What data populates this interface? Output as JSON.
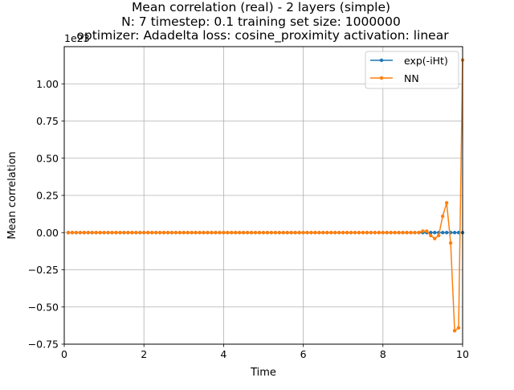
{
  "chart_data": {
    "type": "line",
    "title_lines": [
      "Mean correlation (real) - 2 layers (simple)",
      "N: 7 timestep: 0.1 training set size: 1000000",
      "optimizer: Adadelta loss: cosine_proximity activation: linear"
    ],
    "xlabel": "Time",
    "ylabel": "Mean correlation",
    "y_offset_text": "1e23",
    "xlim": [
      0,
      10
    ],
    "ylim": [
      -0.75,
      1.25
    ],
    "x_ticks": [
      0,
      2,
      4,
      6,
      8,
      10
    ],
    "x_tick_labels": [
      "0",
      "2",
      "4",
      "6",
      "8",
      "10"
    ],
    "y_ticks": [
      -0.75,
      -0.5,
      -0.25,
      0.0,
      0.25,
      0.5,
      0.75,
      1.0
    ],
    "y_tick_labels": [
      "−0.75",
      "−0.50",
      "−0.25",
      "0.00",
      "0.25",
      "0.50",
      "0.75",
      "1.00"
    ],
    "grid": true,
    "legend_position": "top-right",
    "x_start": 0.1,
    "x_step": 0.1,
    "series": [
      {
        "name": "exp(-iHt)",
        "color": "#1f77b4",
        "values": [
          0,
          0,
          0,
          0,
          0,
          0,
          0,
          0,
          0,
          0,
          0,
          0,
          0,
          0,
          0,
          0,
          0,
          0,
          0,
          0,
          0,
          0,
          0,
          0,
          0,
          0,
          0,
          0,
          0,
          0,
          0,
          0,
          0,
          0,
          0,
          0,
          0,
          0,
          0,
          0,
          0,
          0,
          0,
          0,
          0,
          0,
          0,
          0,
          0,
          0,
          0,
          0,
          0,
          0,
          0,
          0,
          0,
          0,
          0,
          0,
          0,
          0,
          0,
          0,
          0,
          0,
          0,
          0,
          0,
          0,
          0,
          0,
          0,
          0,
          0,
          0,
          0,
          0,
          0,
          0,
          0,
          0,
          0,
          0,
          0,
          0,
          0,
          0,
          0,
          0,
          0,
          0,
          0,
          0,
          0,
          0,
          0,
          0,
          0,
          0
        ]
      },
      {
        "name": "NN",
        "color": "#ff7f0e",
        "values": [
          0,
          0,
          0,
          0,
          0,
          0,
          0,
          0,
          0,
          0,
          0,
          0,
          0,
          0,
          0,
          0,
          0,
          0,
          0,
          0,
          0,
          0,
          0,
          0,
          0,
          0,
          0,
          0,
          0,
          0,
          0,
          0,
          0,
          0,
          0,
          0,
          0,
          0,
          0,
          0,
          0,
          0,
          0,
          0,
          0,
          0,
          0,
          0,
          0,
          0,
          0,
          0,
          0,
          0,
          0,
          0,
          0,
          0,
          0,
          0,
          0,
          0,
          0,
          0,
          0,
          0,
          0,
          0,
          0,
          0,
          0,
          0,
          0,
          0,
          0,
          0,
          0,
          0,
          0,
          0,
          0,
          0,
          0,
          0,
          0,
          0,
          0,
          0,
          0,
          0.01,
          0.01,
          -0.02,
          -0.04,
          -0.02,
          0.11,
          0.2,
          -0.07,
          -0.66,
          -0.64,
          1.16
        ]
      }
    ]
  }
}
